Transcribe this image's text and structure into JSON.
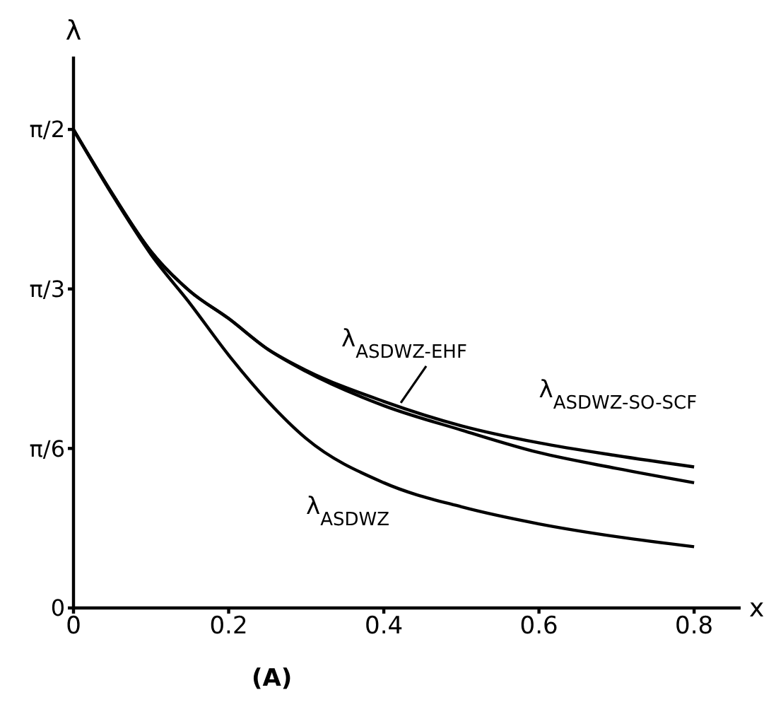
{
  "chart_data": {
    "type": "line",
    "xlabel": "x",
    "ylabel": "λ",
    "annotations": [
      "(A)"
    ],
    "x": [
      0,
      0.05,
      0.1,
      0.15,
      0.2,
      0.25,
      0.3,
      0.4,
      0.5,
      0.6,
      0.7,
      0.8
    ],
    "series": [
      {
        "name": "λ$_{ASDWZ-EHF}$",
        "color": "#000000",
        "values": [
          1.57,
          1.36,
          1.17,
          1.04,
          0.95,
          0.85,
          0.776,
          0.664,
          0.584,
          0.51,
          0.458,
          0.411
        ]
      },
      {
        "name": "λ$_{ASDWZ-SO-SCF}$",
        "color": "#000000",
        "values": [
          1.57,
          1.36,
          1.17,
          1.04,
          0.95,
          0.85,
          0.78,
          0.678,
          0.598,
          0.542,
          0.5,
          0.463
        ]
      },
      {
        "name": "λ$_{ASDWZ}$",
        "color": "#000000",
        "values": [
          1.57,
          1.356,
          1.16,
          1.0,
          0.83,
          0.68,
          0.556,
          0.411,
          0.332,
          0.276,
          0.234,
          0.201
        ]
      }
    ],
    "xlim": [
      0,
      0.86
    ],
    "xticks": [
      0,
      0.2,
      0.4,
      0.6,
      0.8
    ],
    "ylim": [
      0,
      1.81
    ],
    "yticks": [
      0,
      {
        "value": 0.5236,
        "label": "π/6"
      },
      {
        "value": 1.0472,
        "label": "π/3"
      },
      {
        "value": 1.5708,
        "label": "π/2"
      }
    ],
    "grid": false,
    "line_style": "solid"
  }
}
